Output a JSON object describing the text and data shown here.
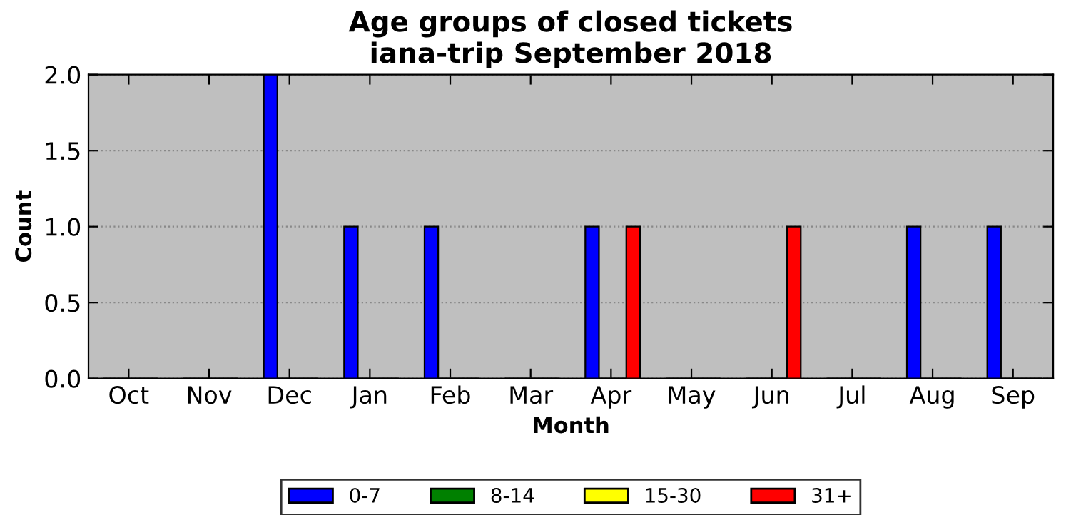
{
  "chart_data": {
    "type": "bar",
    "title": "Age groups of closed tickets\niana-trip September 2018",
    "xlabel": "Month",
    "ylabel": "Count",
    "categories": [
      "Oct",
      "Nov",
      "Dec",
      "Jan",
      "Feb",
      "Mar",
      "Apr",
      "May",
      "Jun",
      "Jul",
      "Aug",
      "Sep"
    ],
    "series": [
      {
        "name": "0-7",
        "color": "#0000ff",
        "values": [
          0,
          0,
          2,
          1,
          1,
          0,
          1,
          0,
          0,
          0,
          1,
          1
        ]
      },
      {
        "name": "8-14",
        "color": "#008000",
        "values": [
          0,
          0,
          0,
          0,
          0,
          0,
          0,
          0,
          0,
          0,
          0,
          0
        ]
      },
      {
        "name": "15-30",
        "color": "#ffff00",
        "values": [
          0,
          0,
          0,
          0,
          0,
          0,
          0,
          0,
          0,
          0,
          0,
          0
        ]
      },
      {
        "name": "31+",
        "color": "#ff0000",
        "values": [
          0,
          0,
          0,
          0,
          0,
          0,
          1,
          0,
          1,
          0,
          0,
          0
        ]
      }
    ],
    "ylim": [
      0,
      2
    ],
    "yticks": [
      {
        "value": 0,
        "label": "0.0"
      },
      {
        "value": 0.5,
        "label": "0.5"
      },
      {
        "value": 1,
        "label": "1.0"
      },
      {
        "value": 1.5,
        "label": "1.5"
      },
      {
        "value": 2,
        "label": "2.0"
      }
    ],
    "grid": "y",
    "legend": "bottom"
  }
}
